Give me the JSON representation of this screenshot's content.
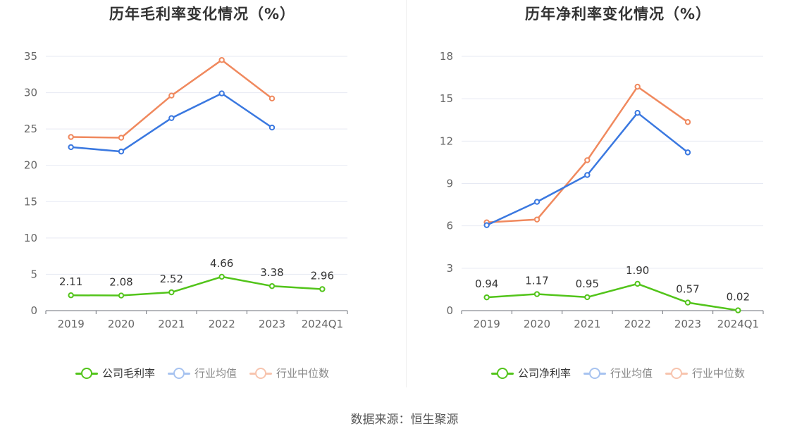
{
  "source_text": "数据来源：恒生聚源",
  "chart_data": [
    {
      "type": "line",
      "title": "历年毛利率变化情况（%）",
      "categories": [
        "2019",
        "2020",
        "2021",
        "2022",
        "2023",
        "2024Q1"
      ],
      "yticks": [
        "0",
        "5",
        "10",
        "15",
        "20",
        "25",
        "30",
        "35"
      ],
      "ylim": [
        0,
        35
      ],
      "grid": true,
      "legend_position": "bottom",
      "series": [
        {
          "name": "公司毛利率",
          "color": "#52c41a",
          "values": [
            2.11,
            2.08,
            2.52,
            4.66,
            3.38,
            2.96
          ],
          "labels": [
            "2.11",
            "2.08",
            "2.52",
            "4.66",
            "3.38",
            "2.96"
          ]
        },
        {
          "name": "行业均值",
          "color": "#3a78e0",
          "values": [
            22.5,
            21.9,
            26.5,
            29.9,
            25.2,
            null
          ]
        },
        {
          "name": "行业中位数",
          "color": "#f0895e",
          "values": [
            23.9,
            23.8,
            29.6,
            34.5,
            29.2,
            null
          ]
        }
      ]
    },
    {
      "type": "line",
      "title": "历年净利率变化情况（%）",
      "categories": [
        "2019",
        "2020",
        "2021",
        "2022",
        "2023",
        "2024Q1"
      ],
      "yticks": [
        "0",
        "3",
        "6",
        "9",
        "12",
        "15",
        "18"
      ],
      "ylim": [
        0,
        18
      ],
      "grid": true,
      "legend_position": "bottom",
      "series": [
        {
          "name": "公司净利率",
          "color": "#52c41a",
          "values": [
            0.94,
            1.17,
            0.95,
            1.9,
            0.57,
            0.02
          ],
          "labels": [
            "0.94",
            "1.17",
            "0.95",
            "1.90",
            "0.57",
            "0.02"
          ]
        },
        {
          "name": "行业均值",
          "color": "#3a78e0",
          "values": [
            6.05,
            7.7,
            9.6,
            14.0,
            11.2,
            null
          ]
        },
        {
          "name": "行业中位数",
          "color": "#f0895e",
          "values": [
            6.25,
            6.45,
            10.65,
            15.85,
            13.35,
            null
          ]
        }
      ]
    }
  ]
}
